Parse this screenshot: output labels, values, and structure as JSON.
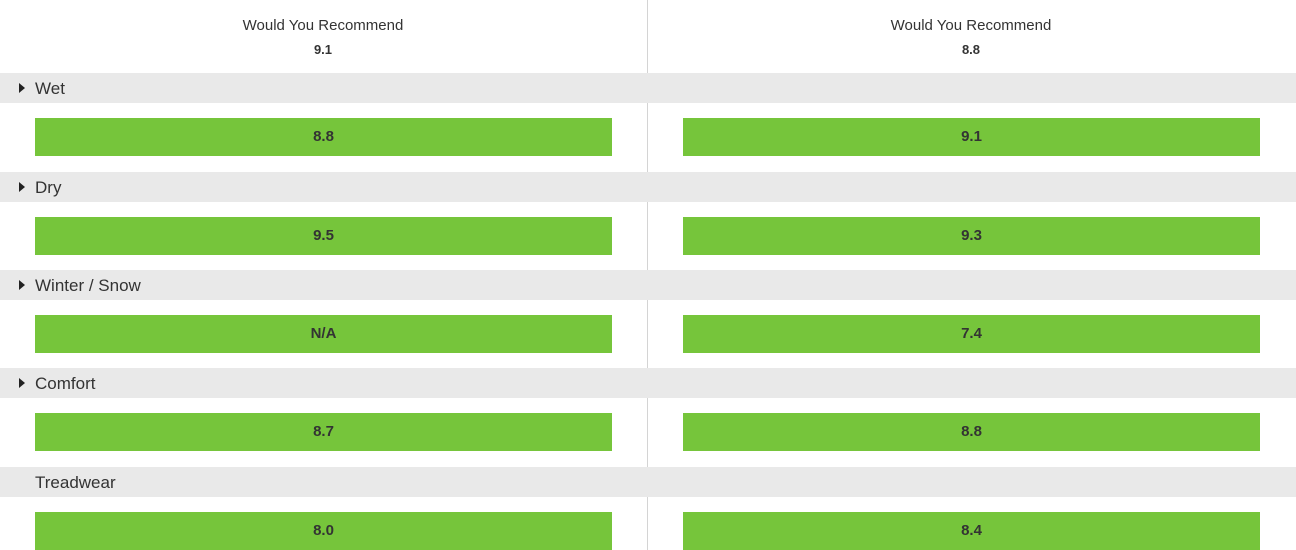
{
  "columns": [
    {
      "header_label": "Would You Recommend",
      "header_value": "9.1"
    },
    {
      "header_label": "Would You Recommend",
      "header_value": "8.8"
    }
  ],
  "categories": [
    {
      "label": "Wet",
      "expandable": true,
      "values": [
        "8.8",
        "9.1"
      ]
    },
    {
      "label": "Dry",
      "expandable": true,
      "values": [
        "9.5",
        "9.3"
      ]
    },
    {
      "label": "Winter / Snow",
      "expandable": true,
      "values": [
        "N/A",
        "7.4"
      ]
    },
    {
      "label": "Comfort",
      "expandable": true,
      "values": [
        "8.7",
        "8.8"
      ]
    },
    {
      "label": "Treadwear",
      "expandable": false,
      "values": [
        "8.0",
        "8.4"
      ]
    }
  ],
  "colors": {
    "bar_fill": "#76c53b",
    "category_band": "#e9e9e9",
    "divider": "#d4d4d4",
    "text": "#333333"
  }
}
